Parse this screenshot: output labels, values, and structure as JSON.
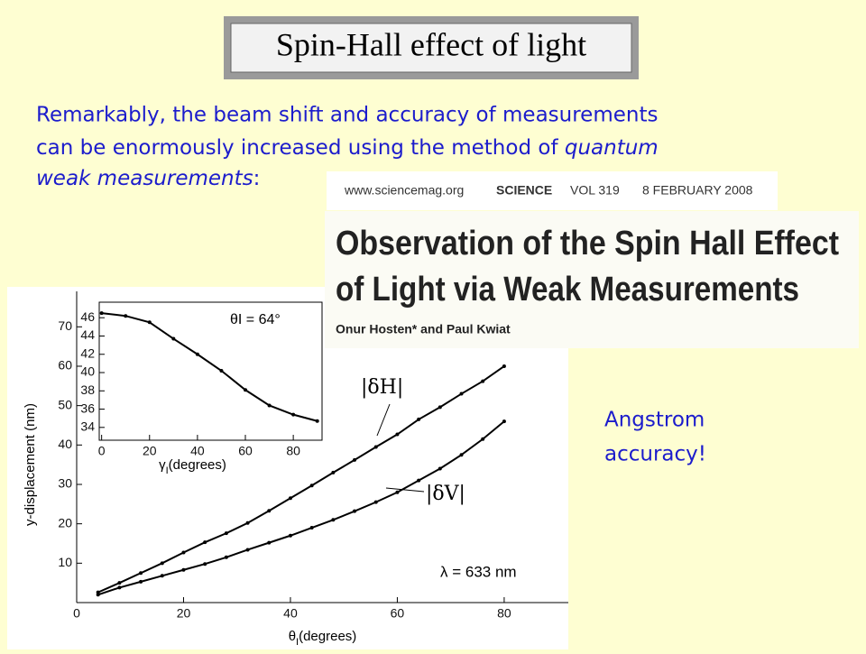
{
  "slide": {
    "title": "Spin-Hall effect of light",
    "body": [
      "Remarkably, the beam shift and accuracy of measurements",
      "can be enormously increased using the method of ",
      "quantum",
      "weak measurements",
      ":"
    ],
    "note": [
      "Angstrom",
      "accuracy!"
    ],
    "paper": {
      "site": "www.sciencemag.org",
      "journal": "SCIENCE",
      "volume": "VOL 319",
      "date": "8 FEBRUARY 2008",
      "title": [
        "Observation of the Spin Hall Effect",
        "of Light via Weak Measurements"
      ],
      "authors": "Onur Hosten* and Paul Kwiat"
    }
  },
  "chart_data": [
    {
      "type": "line",
      "y_label": "y-displacement (nm)",
      "x_label": "θ",
      "x_label_sub": "I",
      "x_label_unit": "(degrees)",
      "annotation": "λ = 633 nm",
      "x": [
        4,
        8,
        12,
        16,
        20,
        24,
        28,
        32,
        36,
        40,
        44,
        48,
        52,
        56,
        60,
        64,
        68,
        72,
        76,
        80
      ],
      "series": [
        {
          "name": "|δH|",
          "color": "#000000",
          "values": [
            2.6,
            5,
            7.5,
            10,
            12.7,
            15.3,
            17.6,
            20.2,
            23.3,
            26.5,
            29.7,
            33,
            36.2,
            39.5,
            42.7,
            46.5,
            49.6,
            53,
            56.2,
            60
          ]
        },
        {
          "name": "|δV|",
          "color": "#000000",
          "values": [
            2,
            3.8,
            5.3,
            6.8,
            8.3,
            9.8,
            11.5,
            13.4,
            15.2,
            17,
            19,
            21,
            23.2,
            25.5,
            28,
            31,
            34,
            37.5,
            41.5,
            46
          ]
        }
      ],
      "xlim": [
        0,
        92
      ],
      "xticks": [
        0,
        20,
        40,
        60,
        80
      ],
      "ylim": [
        0,
        79
      ],
      "yticks": [
        10,
        20,
        30,
        40,
        50,
        60,
        70
      ]
    },
    {
      "type": "line",
      "x_label": "γ",
      "x_label_sub": "I",
      "x_label_unit": "(degrees)",
      "annotation": "θI = 64°",
      "x": [
        0,
        10,
        20,
        30,
        40,
        50,
        60,
        70,
        80,
        90
      ],
      "series": [
        {
          "color": "#000000",
          "values": [
            46.5,
            46.2,
            45.5,
            43.7,
            42,
            40.2,
            38.1,
            36.4,
            35.4,
            34.7
          ]
        }
      ],
      "xlim": [
        -1,
        92
      ],
      "xticks": [
        0,
        20,
        40,
        60,
        80
      ],
      "ylim": [
        32.6,
        47.7
      ],
      "yticks": [
        34,
        36,
        38,
        40,
        42,
        44,
        46
      ]
    }
  ]
}
